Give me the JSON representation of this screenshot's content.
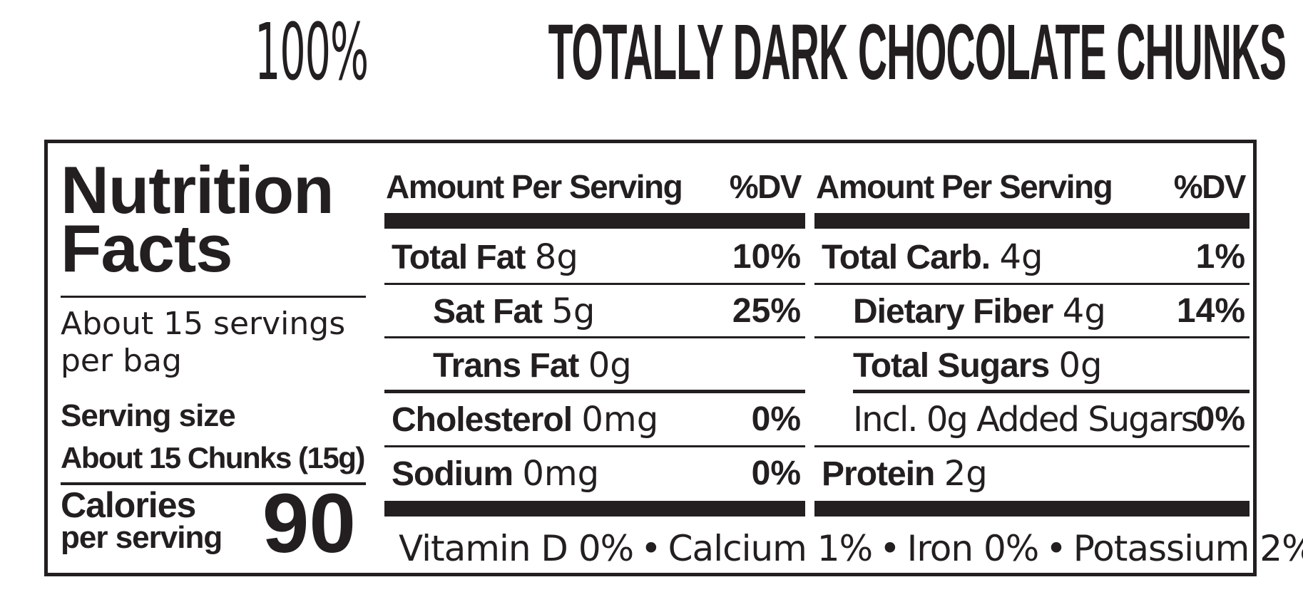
{
  "title": {
    "light": "100%",
    "bold": "TOTALLY DARK CHOCOLATE CHUNKS"
  },
  "facts": {
    "heading_line1": "Nutrition",
    "heading_line2": "Facts",
    "servings_line1": "About 15 servings",
    "servings_line2": "per bag",
    "serving_size_label": "Serving size",
    "serving_size_value": "About 15 Chunks (15g)",
    "calories_label_line1": "Calories",
    "calories_label_line2": "per serving",
    "calories_value": "90"
  },
  "columns": [
    {
      "header_amount": "Amount Per Serving",
      "header_dv": "%DV",
      "rows": [
        {
          "label": "Total Fat",
          "amount": "8g",
          "dv": "10%"
        },
        {
          "label": "Sat Fat",
          "amount": "5g",
          "dv": "25%"
        },
        {
          "label": "Trans Fat",
          "amount": "0g",
          "dv": ""
        },
        {
          "label": "Cholesterol",
          "amount": "0mg",
          "dv": "0%"
        },
        {
          "label": "Sodium",
          "amount": "0mg",
          "dv": "0%"
        }
      ]
    },
    {
      "header_amount": "Amount Per Serving",
      "header_dv": "%DV",
      "rows": [
        {
          "label": "Total Carb.",
          "amount": "4g",
          "dv": "1%"
        },
        {
          "label": "Dietary Fiber",
          "amount": "4g",
          "dv": "14%"
        },
        {
          "label": "Total Sugars",
          "amount": "0g",
          "dv": ""
        },
        {
          "label": "Incl. 0g Added Sugars",
          "amount": "",
          "dv": "0%"
        },
        {
          "label": "Protein",
          "amount": "2g",
          "dv": ""
        }
      ]
    }
  ],
  "vitamins": [
    "Vitamin D 0%",
    "Calcium 1%",
    "Iron 0%",
    "Potassium 2%"
  ],
  "vitamin_separator": "•"
}
